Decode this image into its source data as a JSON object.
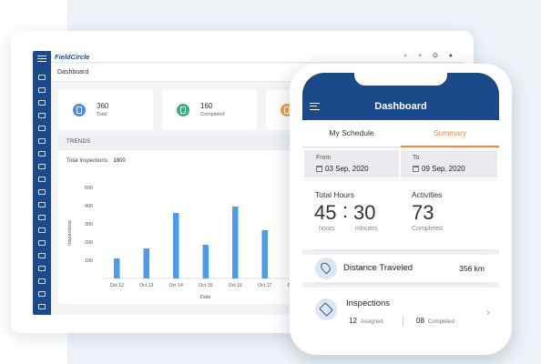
{
  "desktop": {
    "logo": "FieldCircle",
    "page_title": "Dashboard",
    "top_icons": "⌕ + ⚙ ●",
    "stats": [
      {
        "value": "360",
        "label": "Total",
        "color": "#4a8de8"
      },
      {
        "value": "160",
        "label": "Completed",
        "color": "#2fb67c"
      },
      {
        "value": "",
        "label": "",
        "color": "#f0a040"
      }
    ],
    "trends": {
      "header": "TRENDS",
      "total_label": "Total Inspections:",
      "total_value": "1800"
    }
  },
  "chart_data": {
    "type": "bar",
    "categories": [
      "Oct 12",
      "Oct 13",
      "Oct 14",
      "Oct 15",
      "Oct 16",
      "Oct 17",
      "Oct 18"
    ],
    "values": [
      110,
      165,
      360,
      185,
      395,
      265,
      0
    ],
    "xlabel": "Date",
    "ylabel": "Inspections",
    "yticks": [
      "100",
      "200",
      "300",
      "400",
      "500"
    ],
    "ylim": [
      0,
      500
    ],
    "grid": false,
    "bar_color": "#4a9cf0"
  },
  "phone": {
    "title": "Dashboard",
    "tabs": [
      "My Schedule",
      "Summary"
    ],
    "active_tab": "Summary",
    "from": {
      "label": "From",
      "value": "03 Sep, 2020"
    },
    "to": {
      "label": "To",
      "value": "09 Sep, 2020"
    },
    "total_hours": {
      "label": "Total Hours",
      "hours": "45",
      "sep": ":",
      "minutes": "30",
      "hours_unit": "hours",
      "minutes_unit": "minutes"
    },
    "activities": {
      "label": "Activities",
      "value": "73",
      "sub": "Completed"
    },
    "distance": {
      "label": "Distance Traveled",
      "value": "356 km"
    },
    "inspections": {
      "label": "Inspections",
      "assigned_count": "12",
      "assigned_label": "Assigned",
      "completed_count": "08",
      "completed_label": "Completed"
    }
  }
}
